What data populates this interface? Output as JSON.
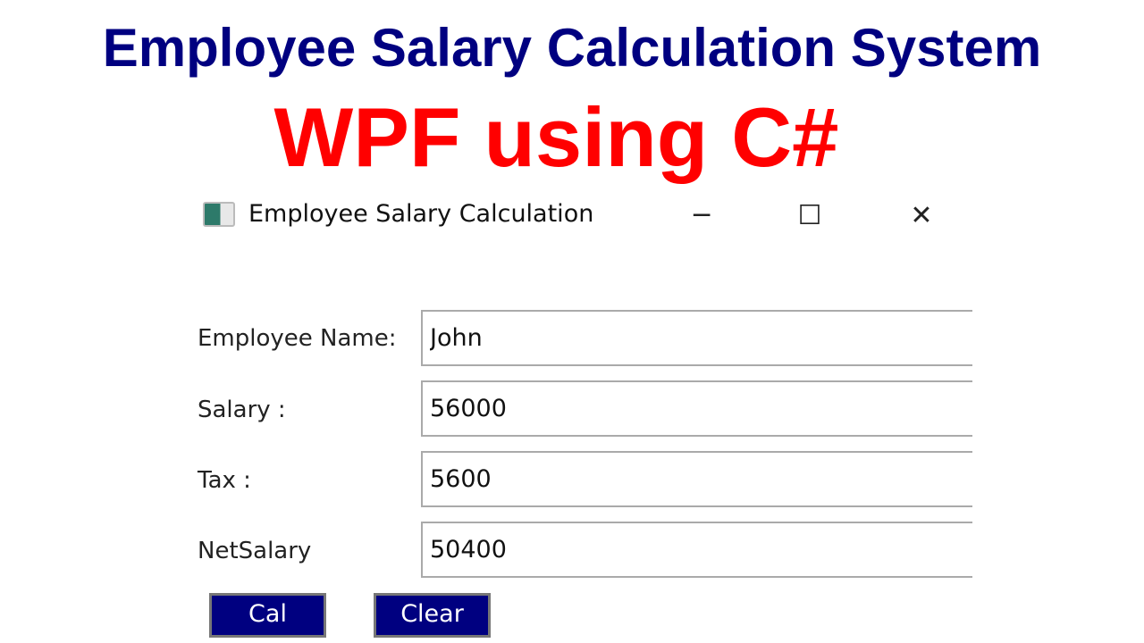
{
  "banner": {
    "title": "Employee Salary Calculation System",
    "subtitle": "WPF using C#"
  },
  "window": {
    "title": "Employee Salary Calculation",
    "icon": "app-window-icon",
    "controls": {
      "minimize": "─",
      "maximize": "☐",
      "close": "✕"
    }
  },
  "form": {
    "fields": [
      {
        "label": "Employee Name:",
        "value": "John"
      },
      {
        "label": "Salary :",
        "value": "56000"
      },
      {
        "label": "Tax :",
        "value": "5600"
      },
      {
        "label": "NetSalary",
        "value": "50400"
      }
    ],
    "buttons": {
      "cal": "Cal",
      "clear": "Clear"
    }
  },
  "colors": {
    "banner_title": "#000080",
    "banner_subtitle": "#ff0000",
    "button_bg": "#000080"
  }
}
